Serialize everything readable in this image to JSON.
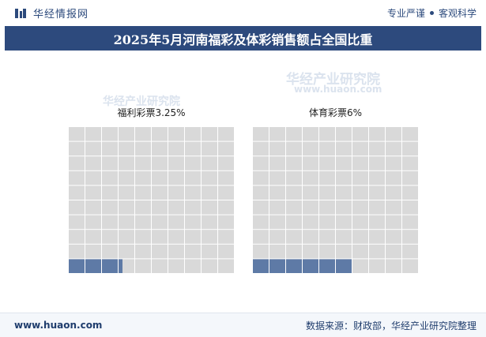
{
  "header": {
    "brand_name": "华经情报网",
    "slogan_left": "专业严谨",
    "slogan_right": "客观科学"
  },
  "title": "2025年5月河南福彩及体彩销售额占全国比重",
  "colors": {
    "filled": "#5e7aa6",
    "empty": "#d9d9d9",
    "title_bg": "#2d4a7d"
  },
  "chart_data": [
    {
      "type": "waffle",
      "label": "福利彩票3.25%",
      "category": "福利彩票",
      "value_percent": 3.25,
      "grid": [
        10,
        10
      ]
    },
    {
      "type": "waffle",
      "label": "体育彩票6%",
      "category": "体育彩票",
      "value_percent": 6,
      "grid": [
        10,
        10
      ]
    }
  ],
  "watermark": {
    "name": "华经产业研究院",
    "url": "www.huaon.com"
  },
  "footer": {
    "website": "www.huaon.com",
    "source": "数据来源：财政部，华经产业研究院整理"
  }
}
